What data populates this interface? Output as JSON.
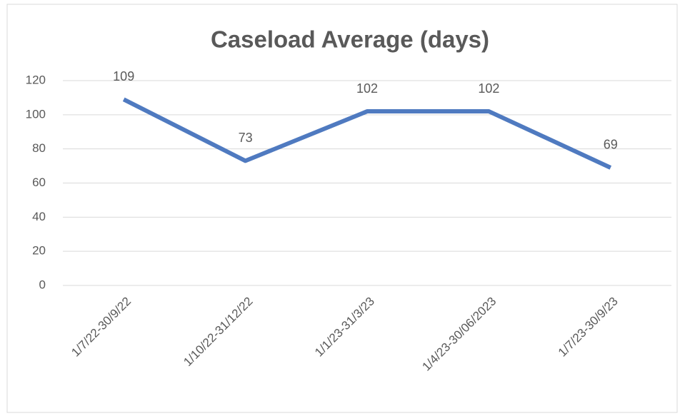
{
  "chart_data": {
    "type": "line",
    "title": "Caseload Average (days)",
    "categories": [
      "1/7/22-30/9/22",
      "1/10/22-31/12/22",
      "1/1/23-31/3/23",
      "1/4/23-30/06/2023",
      "1/7/23-30/9/23"
    ],
    "series": [
      {
        "name": "Caseload Average (days)",
        "color": "#4f7ac0",
        "values": [
          109,
          73,
          102,
          102,
          69
        ]
      }
    ],
    "ylim": [
      0,
      120
    ],
    "yticks": [
      0,
      20,
      40,
      60,
      80,
      100,
      120
    ],
    "grid": true
  }
}
